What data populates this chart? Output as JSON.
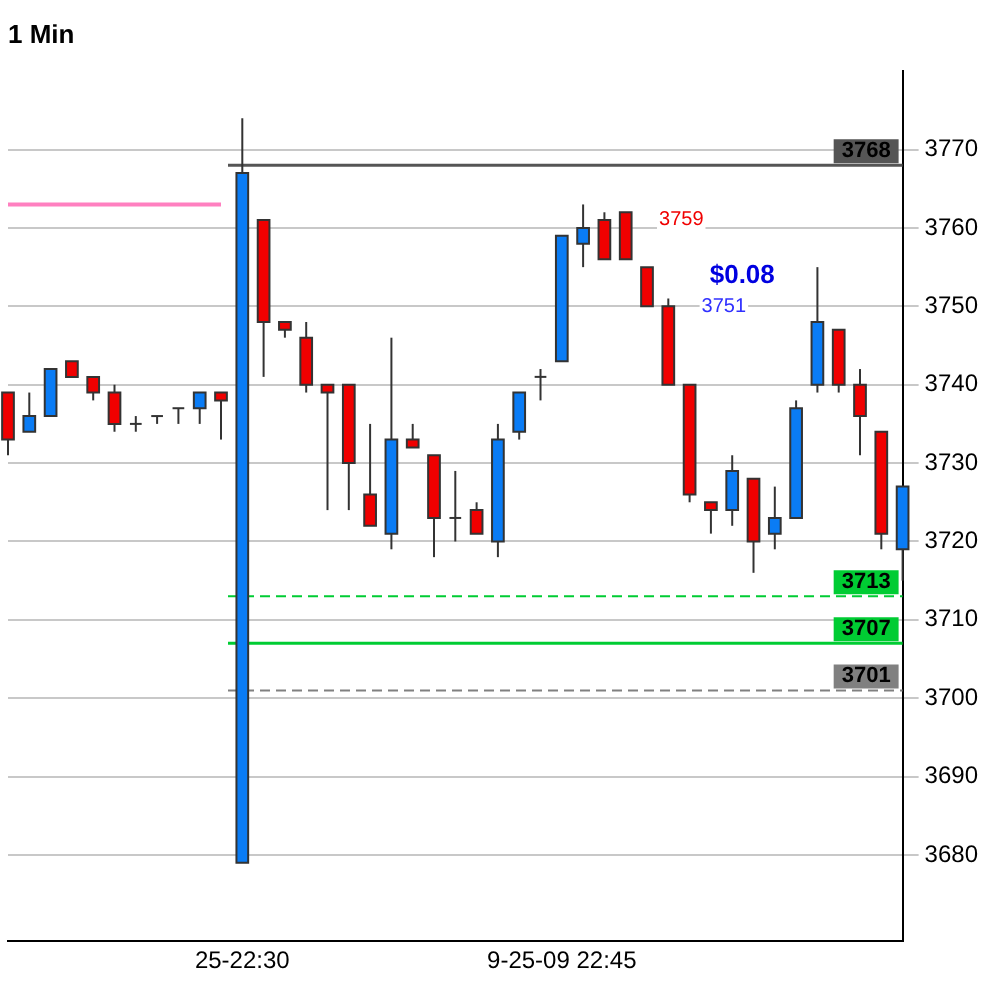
{
  "chart_data": {
    "type": "candlestick",
    "title": "1 Min",
    "categories": [
      null,
      null,
      null,
      null,
      null,
      null,
      null,
      null,
      null,
      null,
      null,
      "25-22:30",
      null,
      null,
      null,
      null,
      null,
      null,
      null,
      null,
      null,
      null,
      null,
      null,
      null,
      null,
      "9-25-09 22:45",
      null,
      null,
      null,
      null,
      null,
      null,
      null,
      null,
      null,
      null,
      null,
      null,
      null,
      null,
      null,
      null
    ],
    "ohlc": [
      [
        3739,
        3739,
        3731,
        3733
      ],
      [
        3734,
        3739,
        3734,
        3736
      ],
      [
        3736,
        3742,
        3736,
        3742
      ],
      [
        3743,
        3743,
        3741,
        3741
      ],
      [
        3741,
        3741,
        3738,
        3739
      ],
      [
        3739,
        3740,
        3734,
        3735
      ],
      [
        3735,
        3736,
        3734,
        3735
      ],
      [
        3736,
        3736,
        3735,
        3736
      ],
      [
        3737,
        3737,
        3735,
        3737
      ],
      [
        3737,
        3739,
        3735,
        3739
      ],
      [
        3739,
        3739,
        3733,
        3738
      ],
      [
        3679,
        3774,
        3679,
        3767
      ],
      [
        3761,
        3761,
        3741,
        3748
      ],
      [
        3748,
        3748,
        3746,
        3747
      ],
      [
        3746,
        3748,
        3739,
        3740
      ],
      [
        3740,
        3740,
        3724,
        3739
      ],
      [
        3740,
        3740,
        3724,
        3730
      ],
      [
        3726,
        3735,
        3722,
        3722
      ],
      [
        3721,
        3746,
        3719,
        3733
      ],
      [
        3733,
        3735,
        3732,
        3732
      ],
      [
        3731,
        3731,
        3718,
        3723
      ],
      [
        3723,
        3729,
        3720,
        3723
      ],
      [
        3724,
        3725,
        3721,
        3721
      ],
      [
        3720,
        3735,
        3718,
        3733
      ],
      [
        3734,
        3739,
        3733,
        3739
      ],
      [
        3741,
        3742,
        3738,
        3741
      ],
      [
        3743,
        3759,
        3743,
        3759
      ],
      [
        3758,
        3763,
        3755,
        3760
      ],
      [
        3761,
        3762,
        3756,
        3756
      ],
      [
        3762,
        3762,
        3756,
        3756
      ],
      [
        3755,
        3755,
        3750,
        3750
      ],
      [
        3750,
        3751,
        3740,
        3740
      ],
      [
        3740,
        3740,
        3725,
        3726
      ],
      [
        3725,
        3725,
        3721,
        3724
      ],
      [
        3724,
        3731,
        3722,
        3729
      ],
      [
        3728,
        3728,
        3716,
        3720
      ],
      [
        3721,
        3727,
        3719,
        3723
      ],
      [
        3723,
        3738,
        3723,
        3737
      ],
      [
        3740,
        3755,
        3739,
        3748
      ],
      [
        3747,
        3747,
        3739,
        3740
      ],
      [
        3740,
        3742,
        3731,
        3736
      ],
      [
        3734,
        3734,
        3719,
        3721
      ],
      [
        3719,
        3727,
        3715,
        3727
      ]
    ],
    "colors": [
      "#f00000",
      "#0a7cf5",
      "#0a7cf5",
      "#f00000",
      "#f00000",
      "#f00000",
      "#333333",
      "#333333",
      "#333333",
      "#0a7cf5",
      "#f00000",
      "#0a7cf5",
      "#f00000",
      "#f00000",
      "#f00000",
      "#f00000",
      "#f00000",
      "#f00000",
      "#0a7cf5",
      "#f00000",
      "#f00000",
      "#333333",
      "#f00000",
      "#0a7cf5",
      "#0a7cf5",
      "#333333",
      "#0a7cf5",
      "#0a7cf5",
      "#f00000",
      "#f00000",
      "#f00000",
      "#f00000",
      "#f00000",
      "#f00000",
      "#0a7cf5",
      "#f00000",
      "#0a7cf5",
      "#0a7cf5",
      "#0a7cf5",
      "#f00000",
      "#f00000",
      "#f00000",
      "#0a7cf5"
    ],
    "series": [
      {
        "type": "line",
        "color": "#ff80c0",
        "values": [
          3763,
          3763,
          3763,
          3763,
          3763,
          3763,
          3763,
          3763,
          3763,
          3763,
          3763,
          null,
          null,
          null,
          null,
          null,
          null,
          null,
          null,
          null,
          null,
          null,
          null,
          null,
          null,
          null,
          null,
          null,
          null,
          null,
          null,
          null,
          null,
          null,
          null,
          null,
          null,
          null,
          null,
          null,
          null,
          null,
          null
        ]
      }
    ],
    "ylim": [
      3669,
      3780
    ],
    "yticks": [
      3680,
      3690,
      3700,
      3710,
      3720,
      3730,
      3740,
      3750,
      3760,
      3770
    ],
    "grid": "y",
    "legend": false,
    "ref_lines": [
      {
        "axis": "y",
        "value": 3768,
        "label": "3768",
        "color": "#555555",
        "line_style": "solid"
      },
      {
        "axis": "y",
        "value": 3713,
        "label": "3713",
        "color": "#00cc33",
        "line_style": "dashed"
      },
      {
        "axis": "y",
        "value": 3707,
        "label": "3707",
        "color": "#00cc33",
        "line_style": "solid"
      },
      {
        "axis": "y",
        "value": 3701,
        "label": "3701",
        "color": "#808080",
        "line_style": "dashed"
      }
    ],
    "annotations": [
      "3759",
      "$0.08",
      "3751"
    ]
  }
}
